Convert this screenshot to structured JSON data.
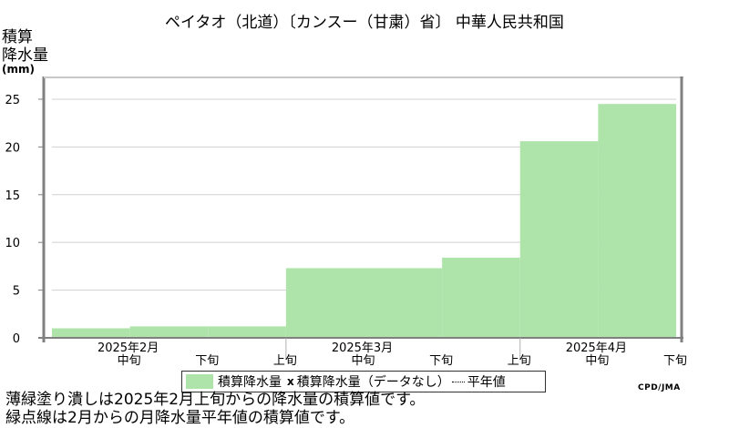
{
  "title": "ペイタオ（北道）〔カンスー（甘粛）省〕 中華人民共和国",
  "ylabel": {
    "line1": "積算",
    "line2": "降水量",
    "unit": "(mm)"
  },
  "legend": {
    "series": "積算降水量",
    "nodata": "積算降水量（データなし）",
    "normal": "平年値"
  },
  "credit": "CPD/JMA",
  "notes": [
    "薄緑塗り潰しは2025年2月上旬からの降水量の積算値です。",
    "緑点線は2月からの月降水量平年値の積算値です。"
  ],
  "colors": {
    "fill": "#aee3a9",
    "frame_dark": "#808080",
    "frame_light": "#c8c8c8",
    "grid": "#d0d0d0"
  },
  "chart_data": {
    "type": "area",
    "ylim": [
      0,
      27
    ],
    "yticks": [
      0,
      5,
      10,
      15,
      20,
      25
    ],
    "months": [
      "2025年2月",
      "2025年3月",
      "2025年4月"
    ],
    "dekad_labels": [
      "中旬",
      "下旬",
      "上旬",
      "中旬",
      "下旬",
      "上旬",
      "中旬",
      "下旬"
    ],
    "series": [
      {
        "name": "積算降水量",
        "steps": [
          {
            "from": 0.0,
            "to": 1.0,
            "value": 1.0
          },
          {
            "from": 1.0,
            "to": 2.0,
            "value": 1.2
          },
          {
            "from": 2.0,
            "to": 3.0,
            "value": 1.2
          },
          {
            "from": 3.0,
            "to": 4.0,
            "value": 7.3
          },
          {
            "from": 4.0,
            "to": 5.0,
            "value": 7.3
          },
          {
            "from": 5.0,
            "to": 6.0,
            "value": 8.4
          },
          {
            "from": 6.0,
            "to": 7.0,
            "value": 20.6
          },
          {
            "from": 7.0,
            "to": 8.0,
            "value": 24.5
          }
        ]
      }
    ]
  }
}
